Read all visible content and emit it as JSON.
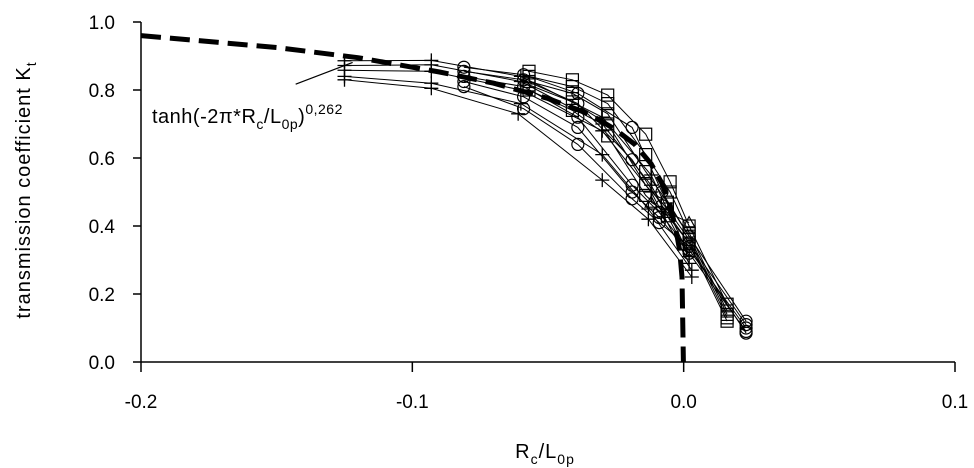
{
  "chart_data": {
    "type": "scatter",
    "title": "",
    "xlabel": {
      "main": "R",
      "sub1": "c",
      "sep": "/L",
      "sub2": "0p"
    },
    "ylabel": {
      "main": "transmission coefficient K",
      "sub": "t"
    },
    "xlim": [
      -0.2,
      0.1
    ],
    "ylim": [
      0.0,
      1.0
    ],
    "x_ticks": [
      "-0.2",
      "-0.1",
      "0.0",
      "0.1"
    ],
    "y_ticks": [
      "0.0",
      "0.2",
      "0.4",
      "0.6",
      "0.8",
      "1.0"
    ],
    "x_tick_values": [
      -0.2,
      -0.1,
      0.0,
      0.1
    ],
    "y_tick_values": [
      0.0,
      0.2,
      0.4,
      0.6,
      0.8,
      1.0
    ],
    "grid": false,
    "annotation": {
      "text_main": "tanh(-2π*R",
      "text_sub1": "c",
      "text_mid": "/L",
      "text_sub2": "0p",
      "text_end": ")",
      "text_sup": "0,262",
      "arrow_from": [
        -0.143,
        0.817
      ],
      "arrow_to": [
        -0.122,
        0.881
      ]
    },
    "fit_curve": {
      "style": "dashed",
      "x": [
        -0.2,
        -0.15,
        -0.12,
        -0.09,
        -0.07,
        -0.05,
        -0.035,
        -0.025,
        -0.018,
        -0.012,
        -0.008,
        -0.005,
        -0.003,
        -0.0015,
        -0.0006,
        -0.0001
      ],
      "y": [
        0.96,
        0.925,
        0.895,
        0.853,
        0.82,
        0.775,
        0.73,
        0.683,
        0.64,
        0.583,
        0.525,
        0.46,
        0.395,
        0.33,
        0.25,
        0.0
      ]
    },
    "series": [
      {
        "marker": "plus",
        "x": [
          -0.125,
          -0.093,
          -0.06,
          -0.03,
          -0.012,
          0.001
        ],
        "y": [
          0.886,
          0.887,
          0.84,
          0.72,
          0.55,
          0.33
        ]
      },
      {
        "marker": "plus",
        "x": [
          -0.125,
          -0.093,
          -0.06,
          -0.03,
          -0.012,
          0.002
        ],
        "y": [
          0.872,
          0.874,
          0.825,
          0.7,
          0.52,
          0.31
        ]
      },
      {
        "marker": "plus",
        "x": [
          -0.125,
          -0.093,
          -0.06,
          -0.03,
          -0.012,
          0.002
        ],
        "y": [
          0.858,
          0.855,
          0.8,
          0.68,
          0.5,
          0.29
        ]
      },
      {
        "marker": "plus",
        "x": [
          -0.125,
          -0.093,
          -0.06,
          -0.03,
          -0.013,
          0.003
        ],
        "y": [
          0.84,
          0.82,
          0.76,
          0.61,
          0.45,
          0.27
        ]
      },
      {
        "marker": "plus",
        "x": [
          -0.125,
          -0.093,
          -0.061,
          -0.03,
          -0.013,
          0.003
        ],
        "y": [
          0.83,
          0.805,
          0.73,
          0.535,
          0.42,
          0.25
        ]
      },
      {
        "marker": "circle",
        "x": [
          -0.081,
          -0.059,
          -0.039,
          -0.019,
          -0.008,
          0.002,
          0.023
        ],
        "y": [
          0.867,
          0.845,
          0.79,
          0.69,
          0.5,
          0.37,
          0.12
        ]
      },
      {
        "marker": "circle",
        "x": [
          -0.081,
          -0.059,
          -0.039,
          -0.019,
          -0.008,
          0.002,
          0.023
        ],
        "y": [
          0.855,
          0.83,
          0.76,
          0.595,
          0.46,
          0.35,
          0.11
        ]
      },
      {
        "marker": "circle",
        "x": [
          -0.081,
          -0.059,
          -0.039,
          -0.019,
          -0.009,
          0.002,
          0.023
        ],
        "y": [
          0.84,
          0.81,
          0.72,
          0.52,
          0.44,
          0.33,
          0.1
        ]
      },
      {
        "marker": "circle",
        "x": [
          -0.081,
          -0.059,
          -0.039,
          -0.019,
          -0.009,
          0.002,
          0.023
        ],
        "y": [
          0.825,
          0.78,
          0.69,
          0.5,
          0.425,
          0.32,
          0.09
        ]
      },
      {
        "marker": "circle",
        "x": [
          -0.081,
          -0.059,
          -0.039,
          -0.019,
          -0.009,
          0.002,
          0.023
        ],
        "y": [
          0.81,
          0.745,
          0.64,
          0.48,
          0.41,
          0.34,
          0.085
        ]
      },
      {
        "marker": "square",
        "x": [
          -0.057,
          -0.041,
          -0.028,
          -0.014,
          -0.005,
          0.002,
          0.016
        ],
        "y": [
          0.855,
          0.83,
          0.785,
          0.67,
          0.53,
          0.4,
          0.17
        ]
      },
      {
        "marker": "square",
        "x": [
          -0.057,
          -0.041,
          -0.028,
          -0.014,
          -0.005,
          0.002,
          0.016
        ],
        "y": [
          0.84,
          0.81,
          0.76,
          0.61,
          0.5,
          0.38,
          0.15
        ]
      },
      {
        "marker": "square",
        "x": [
          -0.057,
          -0.041,
          -0.028,
          -0.014,
          -0.006,
          0.002,
          0.016
        ],
        "y": [
          0.825,
          0.79,
          0.73,
          0.56,
          0.47,
          0.37,
          0.14
        ]
      },
      {
        "marker": "square",
        "x": [
          -0.057,
          -0.041,
          -0.028,
          -0.014,
          -0.006,
          0.002,
          0.016
        ],
        "y": [
          0.815,
          0.765,
          0.7,
          0.52,
          0.45,
          0.36,
          0.13
        ]
      },
      {
        "marker": "square",
        "x": [
          -0.057,
          -0.041,
          -0.028,
          -0.014,
          -0.006,
          0.002,
          0.016
        ],
        "y": [
          0.8,
          0.74,
          0.665,
          0.49,
          0.43,
          0.35,
          0.12
        ]
      },
      {
        "marker": "triangle",
        "x": [
          -0.012,
          -0.006,
          0.002
        ],
        "y": [
          0.47,
          0.44,
          0.41
        ]
      }
    ]
  }
}
